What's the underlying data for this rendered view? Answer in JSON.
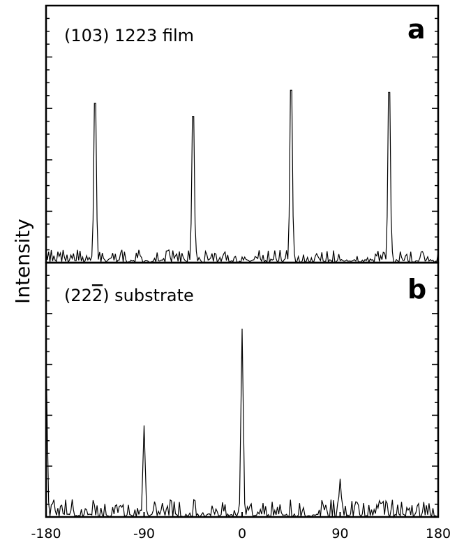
{
  "chart_data": [
    {
      "type": "line",
      "panel_letter": "a",
      "title": "(103) 1223 film",
      "xlabel": "",
      "ylabel": "Intensity",
      "xlim": [
        -180,
        180
      ],
      "ylim": [
        0,
        1
      ],
      "grid": false,
      "legend": "none",
      "noise_level": 0.05,
      "peaks": [
        {
          "x": -135,
          "y": 0.73
        },
        {
          "x": -45,
          "y": 0.67
        },
        {
          "x": 45,
          "y": 0.79
        },
        {
          "x": 135,
          "y": 0.78
        }
      ]
    },
    {
      "type": "line",
      "panel_letter": "b",
      "title": "(22\u00032) substrate",
      "title_parts": {
        "prefix": "(22",
        "overbar": "2",
        "suffix": ")  substrate"
      },
      "xlabel": "",
      "ylabel": "Intensity",
      "xlim": [
        -180,
        180
      ],
      "ylim": [
        0,
        1
      ],
      "grid": false,
      "legend": "none",
      "noise_level": 0.07,
      "peaks": [
        {
          "x": -180,
          "y": 0.64
        },
        {
          "x": -90,
          "y": 0.36
        },
        {
          "x": 0,
          "y": 0.74
        },
        {
          "x": 90,
          "y": 0.15
        }
      ]
    }
  ],
  "x_ticks": [
    "-180",
    "-90",
    "0",
    "90",
    "180"
  ],
  "x_tick_values": [
    -180,
    -90,
    0,
    90,
    180
  ],
  "ylabel": "Intensity"
}
